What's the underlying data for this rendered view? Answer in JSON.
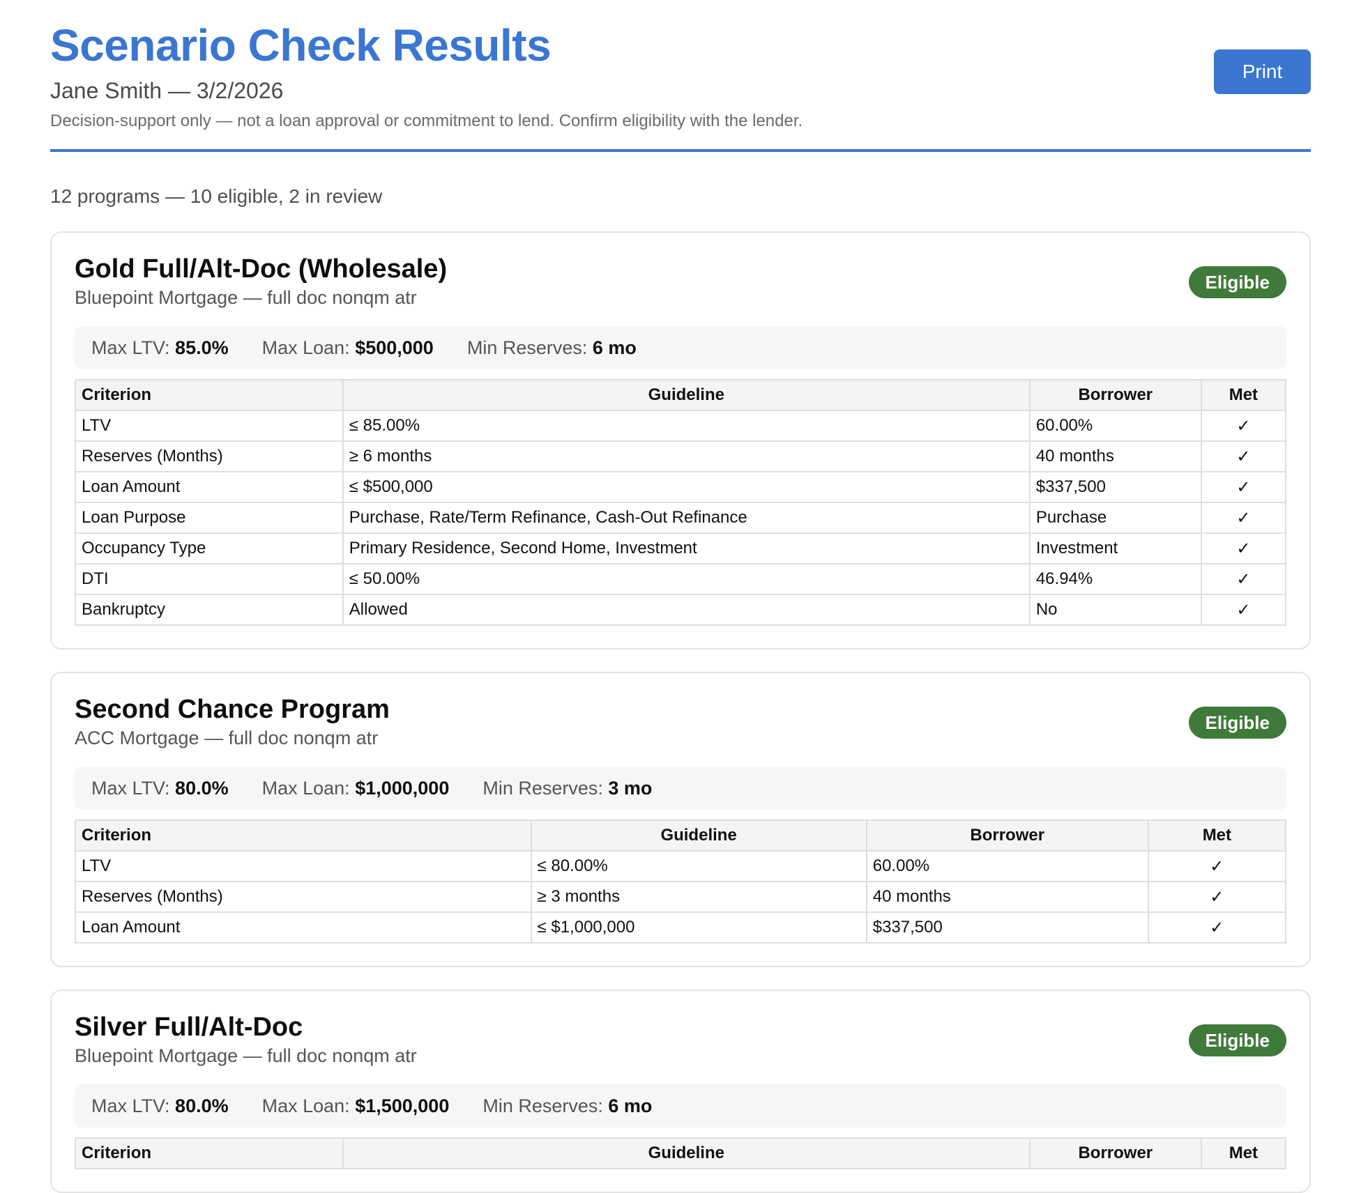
{
  "header": {
    "title": "Scenario Check Results",
    "subtitle": "Jane Smith — 3/2/2026",
    "disclaimer": "Decision-support only — not a loan approval or commitment to lend. Confirm eligibility with the lender.",
    "print_label": "Print"
  },
  "summary": "12 programs — 10 eligible, 2 in review",
  "colors": {
    "accent": "#3a76d2",
    "eligible": "#3f7a3a"
  },
  "table_headers": {
    "criterion": "Criterion",
    "guideline": "Guideline",
    "borrower": "Borrower",
    "met": "Met"
  },
  "met_icon": "checkmark-icon",
  "programs": [
    {
      "name": "Gold Full/Alt-Doc (Wholesale)",
      "subtitle": "Bluepoint Mortgage — full doc nonqm atr",
      "status": "Eligible",
      "metrics": [
        {
          "label": "Max LTV:",
          "value": "85.0%"
        },
        {
          "label": "Max Loan:",
          "value": "$500,000"
        },
        {
          "label": "Min Reserves:",
          "value": "6 mo"
        }
      ],
      "criteria": [
        {
          "criterion": "LTV",
          "guideline": "≤ 85.00%",
          "borrower": "60.00%",
          "met": "✓"
        },
        {
          "criterion": "Reserves (Months)",
          "guideline": "≥ 6 months",
          "borrower": "40 months",
          "met": "✓"
        },
        {
          "criterion": "Loan Amount",
          "guideline": "≤ $500,000",
          "borrower": "$337,500",
          "met": "✓"
        },
        {
          "criterion": "Loan Purpose",
          "guideline": "Purchase, Rate/Term Refinance, Cash-Out Refinance",
          "borrower": "Purchase",
          "met": "✓"
        },
        {
          "criterion": "Occupancy Type",
          "guideline": "Primary Residence, Second Home, Investment",
          "borrower": "Investment",
          "met": "✓"
        },
        {
          "criterion": "DTI",
          "guideline": "≤ 50.00%",
          "borrower": "46.94%",
          "met": "✓"
        },
        {
          "criterion": "Bankruptcy",
          "guideline": "Allowed",
          "borrower": "No",
          "met": "✓"
        }
      ]
    },
    {
      "name": "Second Chance Program",
      "subtitle": "ACC Mortgage — full doc nonqm atr",
      "status": "Eligible",
      "metrics": [
        {
          "label": "Max LTV:",
          "value": "80.0%"
        },
        {
          "label": "Max Loan:",
          "value": "$1,000,000"
        },
        {
          "label": "Min Reserves:",
          "value": "3 mo"
        }
      ],
      "criteria": [
        {
          "criterion": "LTV",
          "guideline": "≤ 80.00%",
          "borrower": "60.00%",
          "met": "✓"
        },
        {
          "criterion": "Reserves (Months)",
          "guideline": "≥ 3 months",
          "borrower": "40 months",
          "met": "✓"
        },
        {
          "criterion": "Loan Amount",
          "guideline": "≤ $1,000,000",
          "borrower": "$337,500",
          "met": "✓"
        }
      ]
    },
    {
      "name": "Silver Full/Alt-Doc",
      "subtitle": "Bluepoint Mortgage — full doc nonqm atr",
      "status": "Eligible",
      "metrics": [
        {
          "label": "Max LTV:",
          "value": "80.0%"
        },
        {
          "label": "Max Loan:",
          "value": "$1,500,000"
        },
        {
          "label": "Min Reserves:",
          "value": "6 mo"
        }
      ],
      "criteria": []
    }
  ]
}
